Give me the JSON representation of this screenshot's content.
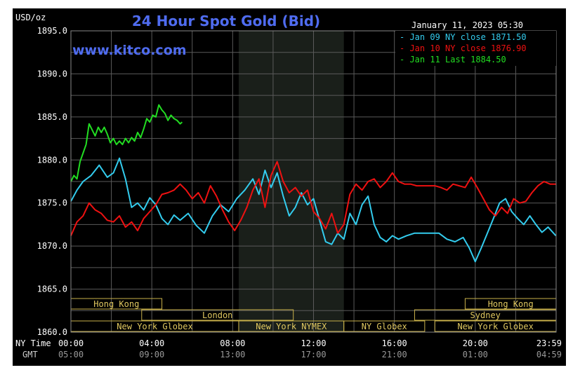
{
  "chart_data": {
    "type": "line",
    "title": "24 Hour Spot Gold (Bid)",
    "watermark": "www.kitco.com",
    "timestamp": "January 11, 2023 05:30",
    "ylabel": "USD/oz",
    "ylim": [
      1860,
      1895
    ],
    "yticks": [
      {
        "value": 1860,
        "label": "1860.0"
      },
      {
        "value": 1865,
        "label": "1865.0"
      },
      {
        "value": 1870,
        "label": "1870.0"
      },
      {
        "value": 1875,
        "label": "1875.0"
      },
      {
        "value": 1880,
        "label": "1880.0"
      },
      {
        "value": 1885,
        "label": "1885.0"
      },
      {
        "value": 1890,
        "label": "1890.0"
      },
      {
        "value": 1895,
        "label": "1895.0"
      }
    ],
    "xlim": [
      0,
      24
    ],
    "x_axis_label_ny": "NY Time",
    "x_axis_label_gmt": "GMT",
    "xticks": [
      {
        "hour": 0,
        "ny": "00:00",
        "gmt": "05:00"
      },
      {
        "hour": 4,
        "ny": "04:00",
        "gmt": "09:00"
      },
      {
        "hour": 8,
        "ny": "08:00",
        "gmt": "13:00"
      },
      {
        "hour": 12,
        "ny": "12:00",
        "gmt": "17:00"
      },
      {
        "hour": 16,
        "ny": "16:00",
        "gmt": "21:00"
      },
      {
        "hour": 20,
        "ny": "20:00",
        "gmt": "01:00"
      },
      {
        "hour": 24,
        "ny": "23:59",
        "gmt": "04:59"
      }
    ],
    "shaded_session": [
      8.3,
      13.5
    ],
    "grid": true,
    "legend_position": "top-right",
    "markets": [
      {
        "name": "Hong Kong",
        "row": 0,
        "start": 0,
        "end": 4.5
      },
      {
        "name": "Hong Kong",
        "row": 0,
        "start": 19.5,
        "end": 24
      },
      {
        "name": "London",
        "row": 1,
        "start": 3.5,
        "end": 11
      },
      {
        "name": "Sydney",
        "row": 1,
        "start": 17,
        "end": 24
      },
      {
        "name": "New York Globex",
        "row": 2,
        "start": 0,
        "end": 8.3
      },
      {
        "name": "New York NYMEX",
        "row": 2,
        "start": 8.3,
        "end": 13.5
      },
      {
        "name": "NY Globex",
        "row": 2,
        "start": 13.5,
        "end": 17.5
      },
      {
        "name": "New York Globex",
        "row": 2,
        "start": 18,
        "end": 24
      }
    ],
    "series": [
      {
        "name": "Jan 09 NY close 1871.50",
        "color": "#33ccee",
        "x": [
          0,
          0.3,
          0.6,
          1.0,
          1.4,
          1.8,
          2.1,
          2.4,
          2.7,
          3.0,
          3.3,
          3.6,
          3.9,
          4.2,
          4.5,
          4.8,
          5.1,
          5.4,
          5.8,
          6.2,
          6.6,
          7.0,
          7.4,
          7.8,
          8.2,
          8.6,
          9.0,
          9.3,
          9.6,
          9.9,
          10.2,
          10.5,
          10.8,
          11.1,
          11.4,
          11.7,
          12.0,
          12.3,
          12.6,
          12.9,
          13.2,
          13.5,
          13.8,
          14.1,
          14.4,
          14.7,
          15.0,
          15.3,
          15.6,
          15.9,
          16.2,
          16.6,
          17.0,
          17.4,
          17.8,
          18.2,
          18.6,
          19.0,
          19.4,
          19.7,
          20.0,
          20.3,
          20.6,
          20.9,
          21.2,
          21.5,
          21.8,
          22.1,
          22.4,
          22.7,
          23.0,
          23.3,
          23.6,
          23.99
        ],
        "y": [
          1875.2,
          1876.5,
          1877.5,
          1878.2,
          1879.4,
          1878.0,
          1878.5,
          1880.2,
          1877.8,
          1874.5,
          1875.0,
          1874.2,
          1875.6,
          1874.8,
          1873.2,
          1872.5,
          1873.6,
          1873.0,
          1873.8,
          1872.4,
          1871.5,
          1873.5,
          1874.8,
          1874.0,
          1875.5,
          1876.5,
          1877.8,
          1876.0,
          1878.8,
          1876.8,
          1878.5,
          1875.8,
          1873.5,
          1874.5,
          1876.2,
          1874.8,
          1875.5,
          1873.0,
          1870.5,
          1870.2,
          1871.5,
          1870.8,
          1873.8,
          1872.5,
          1874.8,
          1875.8,
          1872.5,
          1871.0,
          1870.5,
          1871.2,
          1870.8,
          1871.2,
          1871.5,
          1871.5,
          1871.5,
          1871.5,
          1870.8,
          1870.5,
          1871.0,
          1869.8,
          1868.2,
          1869.8,
          1871.5,
          1873.2,
          1875.0,
          1875.5,
          1874.0,
          1873.2,
          1872.5,
          1873.5,
          1872.5,
          1871.6,
          1872.2,
          1871.2
        ]
      },
      {
        "name": "Jan 10 NY close 1876.90",
        "color": "#ee1111",
        "x": [
          0,
          0.3,
          0.6,
          0.9,
          1.2,
          1.5,
          1.8,
          2.1,
          2.4,
          2.7,
          3.0,
          3.3,
          3.6,
          3.9,
          4.2,
          4.5,
          4.8,
          5.1,
          5.4,
          5.7,
          6.0,
          6.3,
          6.6,
          6.9,
          7.2,
          7.5,
          7.8,
          8.1,
          8.4,
          8.7,
          9.0,
          9.3,
          9.6,
          9.9,
          10.2,
          10.5,
          10.8,
          11.1,
          11.4,
          11.7,
          12.0,
          12.3,
          12.6,
          12.9,
          13.2,
          13.5,
          13.8,
          14.1,
          14.4,
          14.7,
          15.0,
          15.3,
          15.6,
          15.9,
          16.2,
          16.5,
          16.8,
          17.1,
          17.4,
          17.7,
          18.0,
          18.3,
          18.6,
          18.9,
          19.2,
          19.5,
          19.8,
          20.1,
          20.4,
          20.7,
          21.0,
          21.3,
          21.6,
          21.9,
          22.2,
          22.5,
          22.8,
          23.1,
          23.4,
          23.7,
          23.99
        ],
        "y": [
          1871.2,
          1872.8,
          1873.5,
          1875.0,
          1874.2,
          1873.8,
          1873.0,
          1872.8,
          1873.5,
          1872.2,
          1872.8,
          1871.8,
          1873.2,
          1874.0,
          1874.8,
          1876.0,
          1876.2,
          1876.5,
          1877.2,
          1876.5,
          1875.5,
          1876.2,
          1875.0,
          1877.0,
          1875.8,
          1874.2,
          1872.8,
          1871.8,
          1873.0,
          1874.5,
          1876.5,
          1877.8,
          1874.5,
          1878.2,
          1879.8,
          1877.5,
          1876.2,
          1876.8,
          1875.8,
          1876.5,
          1874.0,
          1873.2,
          1872.0,
          1873.8,
          1871.5,
          1872.5,
          1876.0,
          1877.2,
          1876.5,
          1877.5,
          1877.8,
          1876.8,
          1877.5,
          1878.5,
          1877.5,
          1877.2,
          1877.2,
          1877.0,
          1877.0,
          1877.0,
          1877.0,
          1876.8,
          1876.5,
          1877.2,
          1877.0,
          1876.8,
          1878.0,
          1876.8,
          1875.5,
          1874.2,
          1873.5,
          1874.5,
          1873.8,
          1875.5,
          1875.0,
          1875.2,
          1876.2,
          1877.0,
          1877.5,
          1877.2,
          1877.2
        ]
      },
      {
        "name": "Jan 11 Last 1884.50",
        "color": "#22dd22",
        "x": [
          0,
          0.15,
          0.3,
          0.45,
          0.6,
          0.75,
          0.9,
          1.05,
          1.2,
          1.35,
          1.5,
          1.65,
          1.8,
          1.95,
          2.1,
          2.25,
          2.4,
          2.55,
          2.7,
          2.85,
          3.0,
          3.15,
          3.3,
          3.45,
          3.6,
          3.75,
          3.9,
          4.05,
          4.2,
          4.35,
          4.5,
          4.65,
          4.8,
          4.95,
          5.1,
          5.25,
          5.4,
          5.5
        ],
        "y": [
          1877.5,
          1878.2,
          1877.8,
          1879.8,
          1880.8,
          1881.8,
          1884.2,
          1883.5,
          1882.8,
          1883.8,
          1883.2,
          1883.8,
          1883.0,
          1882.0,
          1882.5,
          1881.8,
          1882.2,
          1881.8,
          1882.5,
          1882.0,
          1882.6,
          1882.2,
          1883.2,
          1882.6,
          1883.6,
          1884.8,
          1884.4,
          1885.2,
          1885.0,
          1886.4,
          1885.8,
          1885.4,
          1884.6,
          1885.2,
          1884.8,
          1884.6,
          1884.2,
          1884.4
        ]
      }
    ]
  }
}
